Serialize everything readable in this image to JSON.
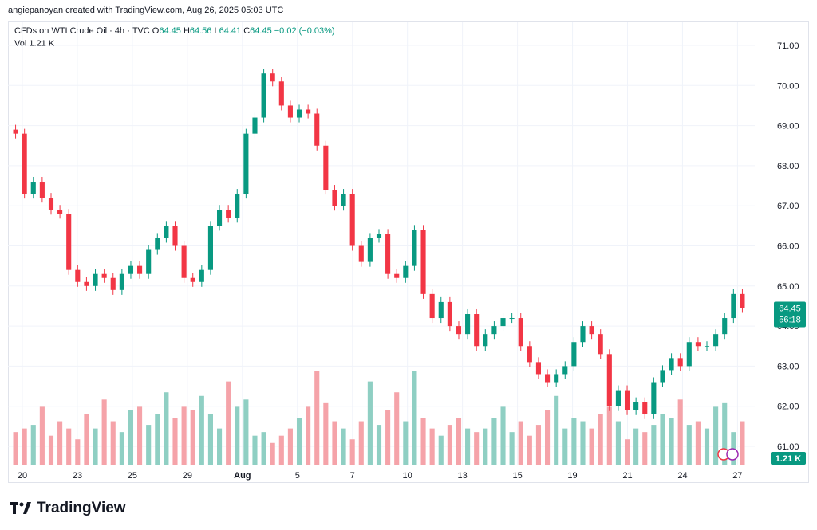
{
  "header": {
    "attribution": "angiepanoyan created with TradingView.com, Aug 26, 2025 05:03 UTC"
  },
  "legend": {
    "symbol": "CFDs on WTI Crude Oil · 4h · TVC",
    "o_label": "O",
    "o_value": "64.45",
    "h_label": "H",
    "h_value": "64.56",
    "l_label": "L",
    "l_value": "64.41",
    "c_label": "C",
    "c_value": "64.45",
    "change": "−0.02 (−0.03%)",
    "vol_label": "Vol",
    "vol_value": "1.21 K"
  },
  "price_badge": {
    "price": "64.45",
    "countdown": "56:18"
  },
  "volume_badge": "1.21 K",
  "logo": {
    "text": "TradingView"
  },
  "colors": {
    "up": "#089981",
    "down": "#f23645",
    "up_vol": "#8fcfc3",
    "down_vol": "#f5a3a9",
    "grid": "#f0f3fa",
    "text": "#131722"
  },
  "chart_data": {
    "type": "candlestick",
    "title": "CFDs on WTI Crude Oil · 4h · TVC",
    "y_ticks": [
      "71.00",
      "70.00",
      "69.00",
      "68.00",
      "67.00",
      "66.00",
      "65.00",
      "64.00",
      "63.00",
      "62.00",
      "61.00"
    ],
    "ylim": [
      60.5,
      71.5
    ],
    "x_ticks": [
      "20",
      "23",
      "25",
      "29",
      "Aug",
      "5",
      "7",
      "10",
      "13",
      "15",
      "19",
      "21",
      "24",
      "27"
    ],
    "last_price": 64.45,
    "grid": true,
    "series_note": "Approximate close-price path read from the chart",
    "closes": [
      68.8,
      67.3,
      67.6,
      67.2,
      66.9,
      66.8,
      65.4,
      65.1,
      65.0,
      65.3,
      65.2,
      64.9,
      65.3,
      65.5,
      65.3,
      65.9,
      66.2,
      66.5,
      66.0,
      65.2,
      65.1,
      65.4,
      66.5,
      66.9,
      66.7,
      67.3,
      68.8,
      69.2,
      70.3,
      70.1,
      69.5,
      69.2,
      69.4,
      69.3,
      68.5,
      67.4,
      67.0,
      67.3,
      66.0,
      65.6,
      66.2,
      66.3,
      65.3,
      65.2,
      65.5,
      66.4,
      64.8,
      64.2,
      64.6,
      64.0,
      63.8,
      64.3,
      63.5,
      63.8,
      64.0,
      64.2,
      64.2,
      63.5,
      63.1,
      62.8,
      62.6,
      62.8,
      63.0,
      63.6,
      64.0,
      63.8,
      63.3,
      62.0,
      62.4,
      61.9,
      62.1,
      61.8,
      62.6,
      62.9,
      63.2,
      63.0,
      63.6,
      63.5,
      63.5,
      63.8,
      64.2,
      64.8,
      64.45
    ],
    "volumes": [
      0.9,
      1.0,
      1.1,
      1.6,
      0.8,
      1.2,
      1.0,
      0.7,
      1.4,
      1.0,
      1.8,
      1.2,
      0.9,
      1.5,
      1.6,
      1.1,
      1.4,
      2.0,
      1.3,
      1.6,
      1.5,
      1.9,
      1.4,
      1.0,
      2.3,
      1.6,
      1.8,
      0.8,
      0.9,
      0.6,
      0.8,
      1.0,
      1.3,
      1.6,
      2.6,
      1.7,
      1.2,
      1.0,
      0.7,
      1.2,
      2.3,
      1.1,
      1.5,
      2.0,
      1.2,
      2.6,
      1.3,
      1.0,
      0.8,
      1.1,
      1.3,
      1.0,
      0.9,
      1.0,
      1.3,
      1.6,
      0.9,
      1.2,
      0.8,
      1.1,
      1.5,
      1.9,
      1.0,
      1.3,
      1.2,
      1.0,
      1.4,
      1.6,
      1.2,
      0.7,
      1.0,
      0.9,
      1.1,
      1.4,
      1.3,
      1.8,
      1.1,
      1.2,
      1.0,
      1.6,
      1.7,
      0.9,
      1.2
    ]
  }
}
